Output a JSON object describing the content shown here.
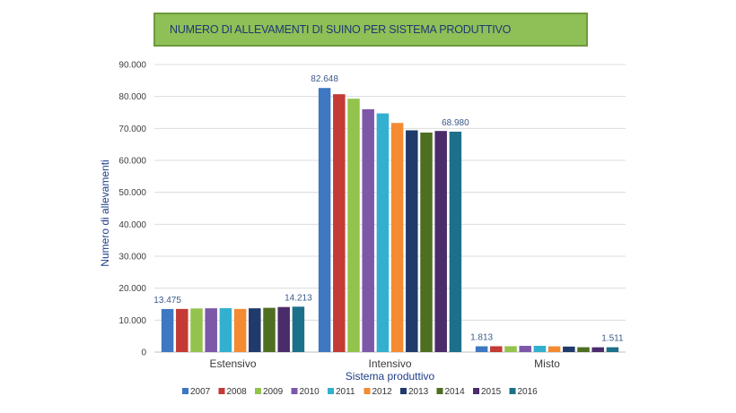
{
  "chart_data": {
    "type": "bar",
    "title": "NUMERO DI ALLEVAMENTI DI SUINO PER SISTEMA PRODUTTIVO",
    "xlabel": "Sistema produttivo",
    "ylabel": "Numero di allevamenti",
    "ylim": [
      0,
      90000
    ],
    "yticks": [
      "0",
      "10.000",
      "20.000",
      "30.000",
      "40.000",
      "50.000",
      "60.000",
      "70.000",
      "80.000",
      "90.000"
    ],
    "categories": [
      "Estensivo",
      "Intensivo",
      "Misto"
    ],
    "grid": true,
    "legend_position": "bottom",
    "series": [
      {
        "name": "2007",
        "color": "#3e77c2",
        "values": [
          13475,
          82648,
          1813
        ]
      },
      {
        "name": "2008",
        "color": "#c43a35",
        "values": [
          13500,
          80700,
          1830
        ]
      },
      {
        "name": "2009",
        "color": "#93c34c",
        "values": [
          13650,
          79300,
          1840
        ]
      },
      {
        "name": "2010",
        "color": "#7d58a8",
        "values": [
          13700,
          76000,
          1950
        ]
      },
      {
        "name": "2011",
        "color": "#33b0cf",
        "values": [
          13750,
          74700,
          1960
        ]
      },
      {
        "name": "2012",
        "color": "#f48a32",
        "values": [
          13500,
          71700,
          1800
        ]
      },
      {
        "name": "2013",
        "color": "#203a6b",
        "values": [
          13700,
          69400,
          1720
        ]
      },
      {
        "name": "2014",
        "color": "#4e6f21",
        "values": [
          13850,
          68700,
          1520
        ]
      },
      {
        "name": "2015",
        "color": "#4b2c6b",
        "values": [
          14100,
          69200,
          1500
        ]
      },
      {
        "name": "2016",
        "color": "#1d7089",
        "values": [
          14213,
          68980,
          1511
        ]
      }
    ],
    "data_labels": [
      {
        "category": 0,
        "series": 0,
        "text": "13.475"
      },
      {
        "category": 0,
        "series": 9,
        "text": "14.213"
      },
      {
        "category": 1,
        "series": 0,
        "text": "82.648"
      },
      {
        "category": 1,
        "series": 9,
        "text": "68.980"
      },
      {
        "category": 2,
        "series": 0,
        "text": "1.813"
      },
      {
        "category": 2,
        "series": 9,
        "text": "1.511"
      }
    ]
  }
}
